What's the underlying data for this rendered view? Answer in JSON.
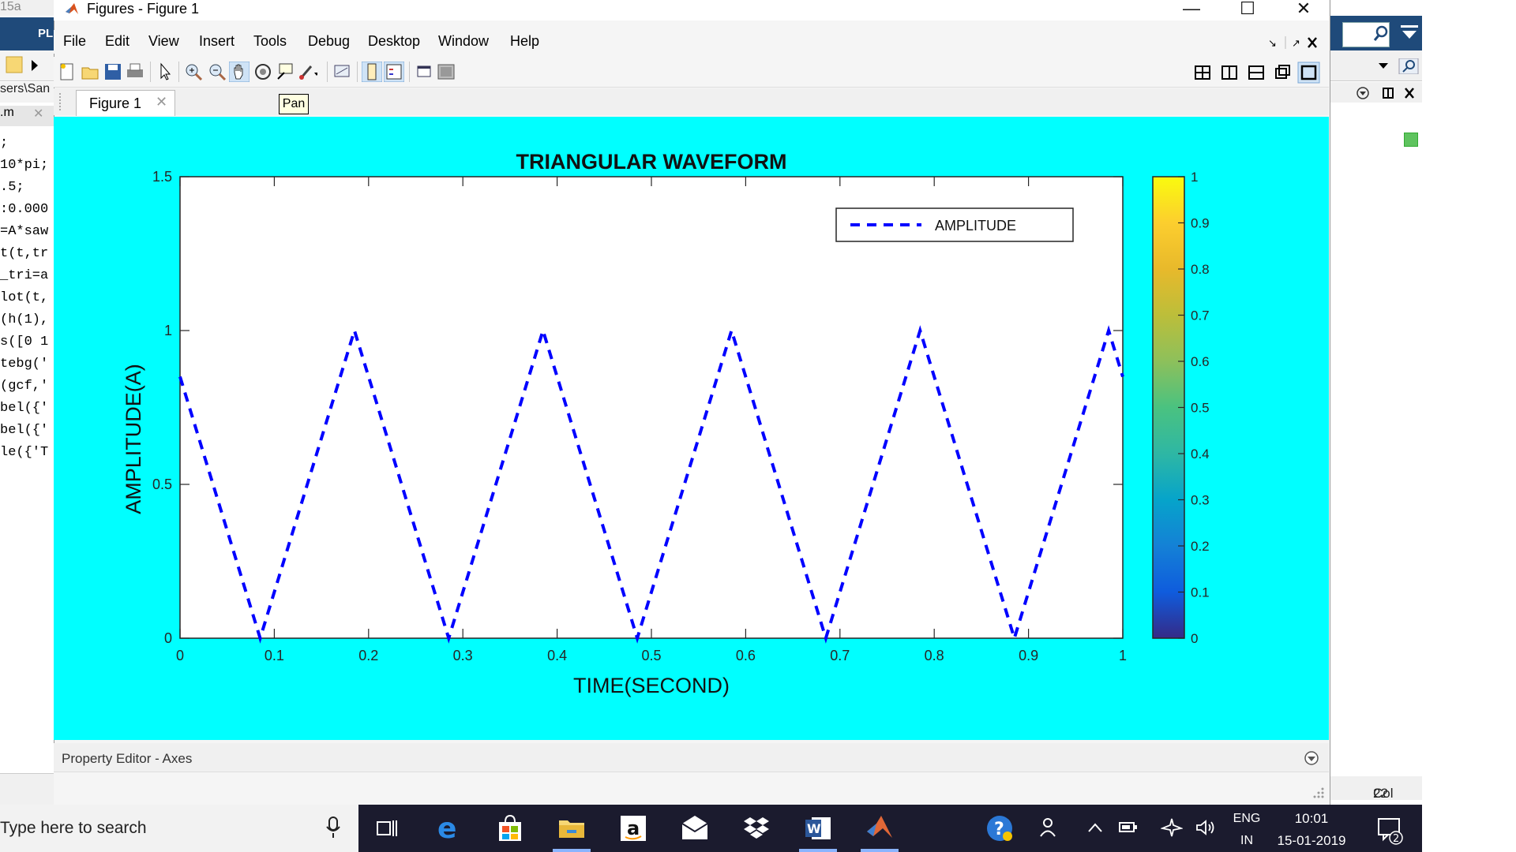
{
  "background_window": {
    "title_fragment": "15a",
    "tab_fragment": "PL",
    "path_fragment": "sers\\San",
    "file_fragment": ".m",
    "code_lines": [
      ";",
      "10*pi;",
      ".5;",
      ":0.000",
      "=A*saw",
      "t(t,tr",
      "_tri=a",
      "lot(t,",
      "(h(1),",
      "s([0 1",
      "tebg('",
      "(gcf,'",
      "bel({'",
      "bel({'",
      "le({'T"
    ],
    "col_label": "Col",
    "col_value": "22"
  },
  "window": {
    "title": "Figures - Figure 1",
    "minimize": "—",
    "maximize": "☐",
    "close": "✕"
  },
  "menu": [
    "File",
    "Edit",
    "View",
    "Insert",
    "Tools",
    "Debug",
    "Desktop",
    "Window",
    "Help"
  ],
  "toolbar_icons": [
    "new-figure-icon",
    "open-icon",
    "save-icon",
    "print-icon",
    "pointer-icon",
    "zoom-in-icon",
    "zoom-out-icon",
    "pan-icon",
    "rotate-3d-icon",
    "data-cursor-icon",
    "brush-icon",
    "link-plot-icon",
    "colorbar-icon",
    "legend-icon",
    "hide-plot-tools-icon",
    "show-plot-tools-icon"
  ],
  "tab": {
    "label": "Figure 1",
    "close": "✕"
  },
  "tooltip": "Pan",
  "chart_data": {
    "type": "line",
    "title": "TRIANGULAR WAVEFORM",
    "xlabel": "TIME(SECOND)",
    "ylabel": "AMPLITUDE(A)",
    "xlim": [
      0,
      1
    ],
    "ylim": [
      0,
      1.5
    ],
    "xticks": [
      "0",
      "0.1",
      "0.2",
      "0.3",
      "0.4",
      "0.5",
      "0.6",
      "0.7",
      "0.8",
      "0.9",
      "1"
    ],
    "yticks": [
      "0",
      "0.5",
      "1",
      "1.5"
    ],
    "grid": false,
    "legend_position": "top-right",
    "series": [
      {
        "name": "AMPLITUDE",
        "style": "dashed",
        "color": "#0000ff",
        "x": [
          0,
          0.085,
          0.185,
          0.285,
          0.385,
          0.485,
          0.585,
          0.685,
          0.785,
          0.885,
          0.985,
          1.0
        ],
        "y": [
          0.85,
          0.0,
          1.0,
          0.0,
          1.0,
          0.0,
          1.0,
          0.0,
          1.0,
          0.0,
          1.0,
          0.85
        ]
      }
    ],
    "colorbar": {
      "ticks": [
        "0",
        "0.1",
        "0.2",
        "0.3",
        "0.4",
        "0.5",
        "0.6",
        "0.7",
        "0.8",
        "0.9",
        "1"
      ],
      "colormap": "parula"
    },
    "figure_background": "#00ffff"
  },
  "property_editor": {
    "title": "Property Editor - Axes"
  },
  "taskbar": {
    "search_placeholder": "Type here to search",
    "apps": [
      "task-view-icon",
      "edge-icon",
      "store-icon",
      "file-explorer-icon",
      "amazon-icon",
      "mail-icon",
      "dropbox-icon",
      "word-icon",
      "matlab-icon"
    ],
    "lang_top": "ENG",
    "lang_bottom": "IN",
    "time": "10:01",
    "date": "15-01-2019",
    "notifications": "2"
  }
}
